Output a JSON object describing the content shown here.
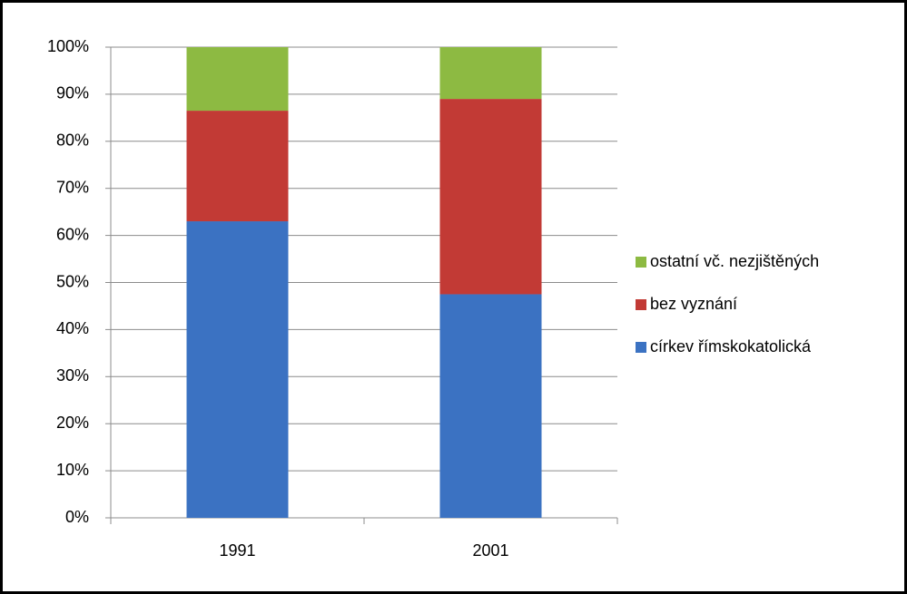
{
  "chart_data": {
    "type": "stacked_bar",
    "categories": [
      "1991",
      "2001"
    ],
    "series": [
      {
        "name": "církev římskokatolická",
        "color": "#3b72c2",
        "values": [
          63,
          47.5
        ]
      },
      {
        "name": "bez vyznání",
        "color": "#c23a35",
        "values": [
          23.5,
          41.5
        ]
      },
      {
        "name": "ostatní vč. nezjištěných",
        "color": "#8dba42",
        "values": [
          13.5,
          11
        ]
      }
    ],
    "ylim": [
      0,
      100
    ],
    "yticks": [
      {
        "value": 0,
        "label": "0%"
      },
      {
        "value": 10,
        "label": "10%"
      },
      {
        "value": 20,
        "label": "20%"
      },
      {
        "value": 30,
        "label": "30%"
      },
      {
        "value": 40,
        "label": "40%"
      },
      {
        "value": 50,
        "label": "50%"
      },
      {
        "value": 60,
        "label": "60%"
      },
      {
        "value": 70,
        "label": "70%"
      },
      {
        "value": 80,
        "label": "80%"
      },
      {
        "value": 90,
        "label": "90%"
      },
      {
        "value": 100,
        "label": "100%"
      }
    ],
    "grid": true,
    "legend": "right"
  }
}
